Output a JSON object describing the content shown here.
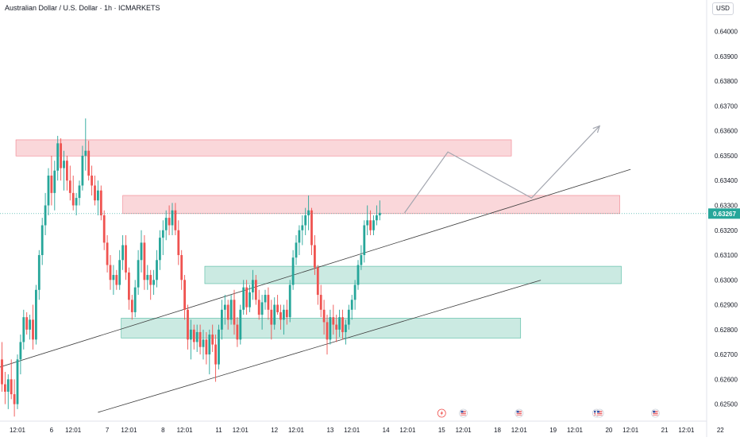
{
  "header": {
    "title": "Australian Dollar / U.S. Dollar · 1h · ICMARKETS",
    "currency": "USD"
  },
  "price_tag": {
    "value": "0.63267",
    "color": "#26a69a"
  },
  "colors": {
    "up": "#26a69a",
    "down": "#ef5350",
    "resistance_zone": "#f7bcc2",
    "support_zone": "#a8dccf",
    "projection": "#a3a6af",
    "trendline": "#3b3b3b"
  },
  "chart_data": {
    "type": "candlestick",
    "title": "Australian Dollar / U.S. Dollar · 1h · ICMARKETS",
    "ylim": [
      0.6247,
      0.6405
    ],
    "y_ticks": [
      "0.62500",
      "0.62600",
      "0.62700",
      "0.62800",
      "0.62900",
      "0.63000",
      "0.63100",
      "0.63200",
      "0.63300",
      "0.63400",
      "0.63500",
      "0.63600",
      "0.63700",
      "0.63800",
      "0.63900",
      "0.64000"
    ],
    "x_ticks": [
      "12:01",
      "6",
      "12:01",
      "7",
      "12:01",
      "8",
      "12:01",
      "11",
      "12:01",
      "12",
      "12:01",
      "13",
      "12:01",
      "14",
      "12:01",
      "15",
      "12:01",
      "18",
      "12:01",
      "19",
      "12:01",
      "20",
      "12:01",
      "21",
      "12:01",
      "22"
    ],
    "x_tick_index": [
      5,
      16,
      23,
      34,
      41,
      52,
      59,
      70,
      77,
      88,
      95,
      106,
      113,
      124,
      131,
      142,
      149,
      160,
      167,
      178,
      185,
      196,
      203,
      214,
      221,
      232
    ],
    "candles": [
      [
        0.6268,
        0.6275,
        0.6255,
        0.6258
      ],
      [
        0.6258,
        0.6263,
        0.625,
        0.6255
      ],
      [
        0.6255,
        0.6262,
        0.6248,
        0.626
      ],
      [
        0.626,
        0.6268,
        0.6252,
        0.6254
      ],
      [
        0.6254,
        0.626,
        0.6245,
        0.625
      ],
      [
        0.625,
        0.627,
        0.6248,
        0.6268
      ],
      [
        0.6268,
        0.6278,
        0.6262,
        0.6275
      ],
      [
        0.6275,
        0.6288,
        0.6272,
        0.6285
      ],
      [
        0.6285,
        0.6287,
        0.6278,
        0.628
      ],
      [
        0.628,
        0.6286,
        0.6276,
        0.6284
      ],
      [
        0.6284,
        0.629,
        0.6272,
        0.6276
      ],
      [
        0.6276,
        0.6298,
        0.6274,
        0.6296
      ],
      [
        0.6296,
        0.6312,
        0.6292,
        0.631
      ],
      [
        0.631,
        0.6325,
        0.6306,
        0.6322
      ],
      [
        0.6322,
        0.6335,
        0.6318,
        0.633
      ],
      [
        0.633,
        0.6345,
        0.6326,
        0.6342
      ],
      [
        0.6342,
        0.635,
        0.633,
        0.6335
      ],
      [
        0.6335,
        0.6348,
        0.6328,
        0.6344
      ],
      [
        0.6344,
        0.6358,
        0.634,
        0.6355
      ],
      [
        0.6355,
        0.6357,
        0.634,
        0.6345
      ],
      [
        0.6345,
        0.6352,
        0.6336,
        0.6348
      ],
      [
        0.6348,
        0.635,
        0.6336,
        0.634
      ],
      [
        0.634,
        0.6346,
        0.6332,
        0.6335
      ],
      [
        0.6335,
        0.6342,
        0.6328,
        0.633
      ],
      [
        0.633,
        0.6335,
        0.6326,
        0.6333
      ],
      [
        0.6333,
        0.634,
        0.633,
        0.6338
      ],
      [
        0.6338,
        0.6354,
        0.6336,
        0.635
      ],
      [
        0.635,
        0.6365,
        0.6344,
        0.6352
      ],
      [
        0.6352,
        0.6356,
        0.634,
        0.6342
      ],
      [
        0.6342,
        0.6346,
        0.6334,
        0.6338
      ],
      [
        0.6338,
        0.6342,
        0.633,
        0.6332
      ],
      [
        0.6332,
        0.634,
        0.6326,
        0.6336
      ],
      [
        0.6336,
        0.6338,
        0.6324,
        0.6326
      ],
      [
        0.6326,
        0.6328,
        0.6312,
        0.6315
      ],
      [
        0.6315,
        0.6318,
        0.6303,
        0.6306
      ],
      [
        0.6306,
        0.631,
        0.6296,
        0.63
      ],
      [
        0.63,
        0.6306,
        0.6294,
        0.6302
      ],
      [
        0.6302,
        0.6304,
        0.6296,
        0.6298
      ],
      [
        0.6298,
        0.6312,
        0.6296,
        0.6308
      ],
      [
        0.6308,
        0.6318,
        0.6304,
        0.6314
      ],
      [
        0.6314,
        0.6318,
        0.63,
        0.6303
      ],
      [
        0.6303,
        0.6305,
        0.6288,
        0.6292
      ],
      [
        0.6292,
        0.6294,
        0.6284,
        0.6287
      ],
      [
        0.6287,
        0.63,
        0.6285,
        0.6297
      ],
      [
        0.6297,
        0.6312,
        0.6294,
        0.6308
      ],
      [
        0.6308,
        0.632,
        0.6303,
        0.6315
      ],
      [
        0.6315,
        0.6318,
        0.6296,
        0.63
      ],
      [
        0.63,
        0.6306,
        0.6296,
        0.6302
      ],
      [
        0.6302,
        0.6304,
        0.6292,
        0.6298
      ],
      [
        0.6298,
        0.6304,
        0.6294,
        0.63
      ],
      [
        0.63,
        0.6312,
        0.6297,
        0.6308
      ],
      [
        0.6308,
        0.632,
        0.6304,
        0.6317
      ],
      [
        0.6317,
        0.6324,
        0.631,
        0.632
      ],
      [
        0.632,
        0.6328,
        0.6316,
        0.6325
      ],
      [
        0.6325,
        0.633,
        0.6318,
        0.6322
      ],
      [
        0.6322,
        0.6331,
        0.6318,
        0.6328
      ],
      [
        0.6328,
        0.6331,
        0.6318,
        0.632
      ],
      [
        0.632,
        0.6324,
        0.6306,
        0.631
      ],
      [
        0.631,
        0.6312,
        0.6296,
        0.63
      ],
      [
        0.63,
        0.6302,
        0.6284,
        0.6288
      ],
      [
        0.6288,
        0.629,
        0.6272,
        0.6276
      ],
      [
        0.6276,
        0.6284,
        0.6268,
        0.628
      ],
      [
        0.628,
        0.6282,
        0.6272,
        0.6275
      ],
      [
        0.6275,
        0.6282,
        0.6271,
        0.6279
      ],
      [
        0.6279,
        0.6282,
        0.627,
        0.6273
      ],
      [
        0.6273,
        0.628,
        0.6268,
        0.6276
      ],
      [
        0.6276,
        0.6279,
        0.6266,
        0.627
      ],
      [
        0.627,
        0.628,
        0.6262,
        0.6278
      ],
      [
        0.6278,
        0.6282,
        0.6271,
        0.6274
      ],
      [
        0.6274,
        0.6278,
        0.6259,
        0.6266
      ],
      [
        0.6266,
        0.6282,
        0.6264,
        0.628
      ],
      [
        0.628,
        0.6292,
        0.6276,
        0.6288
      ],
      [
        0.6288,
        0.6294,
        0.6282,
        0.629
      ],
      [
        0.629,
        0.6292,
        0.628,
        0.6284
      ],
      [
        0.6284,
        0.6294,
        0.6282,
        0.6292
      ],
      [
        0.6292,
        0.6296,
        0.6278,
        0.6282
      ],
      [
        0.6282,
        0.6285,
        0.6273,
        0.6276
      ],
      [
        0.6276,
        0.629,
        0.6274,
        0.6288
      ],
      [
        0.6288,
        0.63,
        0.6286,
        0.6297
      ],
      [
        0.6297,
        0.63,
        0.6286,
        0.6289
      ],
      [
        0.6289,
        0.6298,
        0.6287,
        0.6295
      ],
      [
        0.6295,
        0.6304,
        0.6292,
        0.63
      ],
      [
        0.63,
        0.6302,
        0.629,
        0.6292
      ],
      [
        0.6292,
        0.6296,
        0.6284,
        0.6286
      ],
      [
        0.6286,
        0.6294,
        0.628,
        0.6291
      ],
      [
        0.6291,
        0.6296,
        0.6288,
        0.6294
      ],
      [
        0.6294,
        0.6297,
        0.6284,
        0.6288
      ],
      [
        0.6288,
        0.6292,
        0.6276,
        0.6282
      ],
      [
        0.6282,
        0.6293,
        0.628,
        0.629
      ],
      [
        0.629,
        0.6294,
        0.6286,
        0.6287
      ],
      [
        0.6287,
        0.629,
        0.628,
        0.6284
      ],
      [
        0.6284,
        0.629,
        0.6278,
        0.6288
      ],
      [
        0.6288,
        0.6292,
        0.6282,
        0.6285
      ],
      [
        0.6285,
        0.63,
        0.6283,
        0.6298
      ],
      [
        0.6298,
        0.6312,
        0.6296,
        0.6309
      ],
      [
        0.6309,
        0.6318,
        0.6306,
        0.6315
      ],
      [
        0.6315,
        0.6322,
        0.631,
        0.632
      ],
      [
        0.632,
        0.6326,
        0.6314,
        0.6322
      ],
      [
        0.6322,
        0.6329,
        0.6318,
        0.6326
      ],
      [
        0.6326,
        0.6334,
        0.632,
        0.6328
      ],
      [
        0.6328,
        0.6329,
        0.631,
        0.6314
      ],
      [
        0.6314,
        0.6318,
        0.6302,
        0.6305
      ],
      [
        0.6305,
        0.6306,
        0.629,
        0.6294
      ],
      [
        0.6294,
        0.6298,
        0.6285,
        0.6288
      ],
      [
        0.6288,
        0.6292,
        0.6278,
        0.6283
      ],
      [
        0.6283,
        0.6286,
        0.627,
        0.6276
      ],
      [
        0.6276,
        0.6288,
        0.6274,
        0.6285
      ],
      [
        0.6285,
        0.629,
        0.6278,
        0.6282
      ],
      [
        0.6282,
        0.6286,
        0.6275,
        0.628
      ],
      [
        0.628,
        0.6288,
        0.6277,
        0.6285
      ],
      [
        0.6285,
        0.6288,
        0.6276,
        0.6279
      ],
      [
        0.6279,
        0.6284,
        0.6274,
        0.6282
      ],
      [
        0.6282,
        0.629,
        0.628,
        0.6288
      ],
      [
        0.6288,
        0.6294,
        0.6284,
        0.6292
      ],
      [
        0.6292,
        0.63,
        0.6288,
        0.6298
      ],
      [
        0.6298,
        0.6308,
        0.6296,
        0.6306
      ],
      [
        0.6306,
        0.6314,
        0.6304,
        0.631
      ],
      [
        0.631,
        0.6324,
        0.6307,
        0.6322
      ],
      [
        0.6322,
        0.633,
        0.6318,
        0.6324
      ],
      [
        0.6324,
        0.6328,
        0.6318,
        0.632
      ],
      [
        0.632,
        0.6326,
        0.6318,
        0.6324
      ],
      [
        0.6324,
        0.633,
        0.6322,
        0.6326
      ],
      [
        0.6326,
        0.6332,
        0.6324,
        0.6327
      ]
    ],
    "zones": [
      {
        "kind": "resistance",
        "x0": 4.5,
        "x1": 164.5,
        "y0": 0.63499,
        "y1": 0.63564
      },
      {
        "kind": "resistance",
        "x0": 39,
        "x1": 199.5,
        "y0": 0.63267,
        "y1": 0.6334
      },
      {
        "kind": "support",
        "x0": 65.5,
        "x1": 200,
        "y0": 0.62985,
        "y1": 0.63055
      },
      {
        "kind": "support",
        "x0": 38.5,
        "x1": 167.5,
        "y0": 0.62766,
        "y1": 0.62846
      }
    ],
    "trendlines": [
      {
        "x0": -1,
        "y0": 0.62648,
        "x1": 203,
        "y1": 0.63445
      },
      {
        "x0": 31,
        "y0": 0.62467,
        "x1": 174,
        "y1": 0.62999
      }
    ],
    "projection": [
      {
        "x": 130,
        "y": 0.6327
      },
      {
        "x": 144,
        "y": 0.63515
      },
      {
        "x": 171,
        "y": 0.6333
      },
      {
        "x": 193,
        "y": 0.6362
      }
    ],
    "last_price": 0.63267,
    "event_markers": [
      {
        "x_index": 142,
        "kind": "flash"
      },
      {
        "x_index": 149,
        "kind": "flag"
      },
      {
        "x_index": 167,
        "kind": "flag"
      },
      {
        "x_index": 192,
        "kind": "flag"
      },
      {
        "x_index": 193,
        "kind": "flag"
      },
      {
        "x_index": 211,
        "kind": "flag"
      }
    ]
  }
}
